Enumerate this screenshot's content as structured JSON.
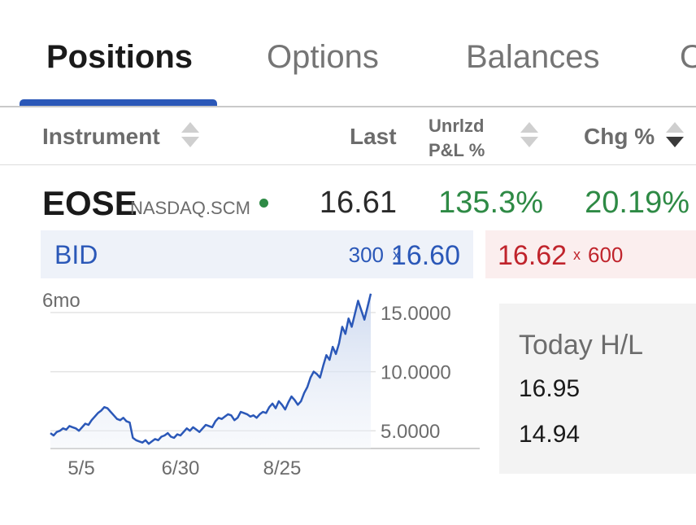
{
  "tabs": [
    {
      "label": "Positions",
      "active": true
    },
    {
      "label": "Options",
      "active": false
    },
    {
      "label": "Balances",
      "active": false
    },
    {
      "label": "O",
      "active": false
    }
  ],
  "columns": {
    "instrument": "Instrument",
    "last": "Last",
    "unrlzd_line1": "Unrlzd",
    "unrlzd_line2": "P&L %",
    "chg": "Chg %"
  },
  "position": {
    "symbol": "EOSE",
    "exchange": "NASDAQ.SCM",
    "last": "16.61",
    "unrealized_pnl_pct": "135.3%",
    "change_pct": "20.19%"
  },
  "quote": {
    "bid_label": "BID",
    "bid_size": "300",
    "bid_price": "16.60",
    "ask_price": "16.62",
    "ask_size": "600",
    "size_separator": "x"
  },
  "today_hl": {
    "title": "Today H/L",
    "high": "16.95",
    "low": "14.94"
  },
  "colors": {
    "accent": "#2b58b8",
    "positive": "#2e8a45",
    "negative": "#c0242c"
  },
  "chart_data": {
    "type": "line",
    "period": "6mo",
    "x_ticks": [
      "5/5",
      "6/30",
      "8/25"
    ],
    "y_ticks": [
      "15.0000",
      "10.0000",
      "5.0000"
    ],
    "ylim": [
      3.5,
      17
    ],
    "grid": true,
    "series": [
      {
        "values": [
          4.8,
          4.6,
          4.9,
          5.0,
          5.2,
          5.1,
          5.4,
          5.3,
          5.2,
          5.0,
          5.3,
          5.6,
          5.5,
          5.9,
          6.2,
          6.5,
          6.7,
          7.0,
          6.9,
          6.6,
          6.3,
          6.0,
          5.9,
          6.1,
          5.8,
          5.7,
          4.4,
          4.2,
          4.1,
          4.0,
          4.2,
          3.9,
          4.1,
          4.3,
          4.2,
          4.5,
          4.6,
          4.8,
          4.5,
          4.4,
          4.7,
          4.6,
          4.9,
          5.2,
          5.0,
          5.3,
          5.1,
          4.9,
          5.2,
          5.5,
          5.4,
          5.3,
          5.8,
          6.1,
          6.0,
          6.2,
          6.4,
          6.3,
          5.9,
          6.1,
          6.6,
          6.5,
          6.4,
          6.2,
          6.3,
          6.1,
          6.4,
          6.6,
          6.5,
          7.0,
          7.3,
          6.9,
          7.5,
          7.2,
          6.8,
          7.4,
          7.9,
          7.6,
          7.2,
          7.5,
          8.2,
          8.7,
          9.5,
          10.0,
          9.8,
          9.5,
          10.5,
          11.4,
          11.0,
          12.1,
          11.5,
          12.4,
          13.8,
          13.2,
          14.5,
          13.8,
          14.9,
          16.0,
          15.2,
          14.4,
          15.5,
          16.6
        ]
      }
    ]
  }
}
